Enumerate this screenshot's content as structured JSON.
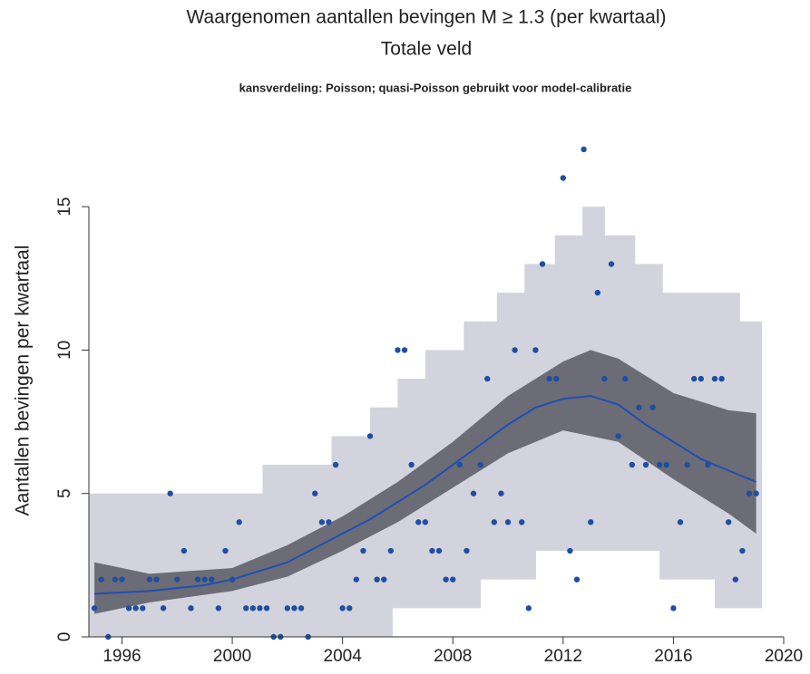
{
  "chart_data": {
    "type": "scatter",
    "title": "Waargenomen aantallen bevingen M ≥ 1.3 (per kwartaal)",
    "subtitle": "Totale veld",
    "note": "kansverdeling: Poisson; quasi-Poisson gebruikt voor model-calibratie",
    "y_label": "Aantallen bevingen per kwartaal",
    "xlim": [
      1994.8,
      2020
    ],
    "xticks": [
      1996,
      2000,
      2004,
      2008,
      2012,
      2016,
      2020
    ],
    "ylim": [
      0,
      17.5
    ],
    "yticks": [
      0,
      5,
      10,
      15
    ],
    "points": {
      "color": "#1f4fa0",
      "x": [
        1995,
        1995.25,
        1995.5,
        1995.75,
        1996,
        1996.25,
        1996.5,
        1996.75,
        1997,
        1997.25,
        1997.5,
        1997.75,
        1998,
        1998.25,
        1998.5,
        1998.75,
        1999,
        1999.25,
        1999.5,
        1999.75,
        2000,
        2000.25,
        2000.5,
        2000.75,
        2001,
        2001.25,
        2001.5,
        2001.75,
        2002,
        2002.25,
        2002.5,
        2002.75,
        2003,
        2003.25,
        2003.5,
        2003.75,
        2004,
        2004.25,
        2004.5,
        2004.75,
        2005,
        2005.25,
        2005.5,
        2005.75,
        2006,
        2006.25,
        2006.5,
        2006.75,
        2007,
        2007.25,
        2007.5,
        2007.75,
        2008,
        2008.25,
        2008.5,
        2008.75,
        2009,
        2009.25,
        2009.5,
        2009.75,
        2010,
        2010.25,
        2010.5,
        2010.75,
        2011,
        2011.25,
        2011.5,
        2011.75,
        2012,
        2012.25,
        2012.5,
        2012.75,
        2013,
        2013.25,
        2013.5,
        2013.75,
        2014,
        2014.25,
        2014.5,
        2014.75,
        2015,
        2015.25,
        2015.5,
        2015.75,
        2016,
        2016.25,
        2016.5,
        2016.75,
        2017,
        2017.25,
        2017.5,
        2017.75,
        2018,
        2018.25,
        2018.5,
        2018.75,
        2019
      ],
      "values": [
        1,
        2,
        0,
        2,
        2,
        1,
        1,
        1,
        2,
        2,
        1,
        5,
        2,
        3,
        1,
        2,
        2,
        2,
        1,
        3,
        2,
        4,
        1,
        1,
        1,
        1,
        0,
        0,
        1,
        1,
        1,
        0,
        5,
        4,
        4,
        6,
        1,
        1,
        2,
        3,
        7,
        2,
        2,
        3,
        10,
        10,
        6,
        4,
        4,
        3,
        3,
        2,
        2,
        6,
        3,
        5,
        6,
        9,
        4,
        5,
        4,
        10,
        4,
        1,
        10,
        13,
        9,
        9,
        16,
        3,
        2,
        17,
        4,
        12,
        9,
        13,
        7,
        9,
        6,
        8,
        6,
        8,
        6,
        6,
        1,
        4,
        6,
        9,
        9,
        6,
        9,
        9,
        4,
        2,
        3,
        5,
        5
      ]
    },
    "fit": {
      "color": "#1f4fb4",
      "x": [
        1995,
        1997,
        1999,
        2000,
        2001,
        2002,
        2003,
        2004,
        2005,
        2006,
        2007,
        2008,
        2009,
        2010,
        2011,
        2012,
        2013,
        2014,
        2015,
        2016,
        2017,
        2018,
        2019
      ],
      "values": [
        1.5,
        1.6,
        1.8,
        2.0,
        2.3,
        2.6,
        3.1,
        3.6,
        4.1,
        4.7,
        5.3,
        6.0,
        6.7,
        7.4,
        8.0,
        8.3,
        8.4,
        8.1,
        7.4,
        6.8,
        6.2,
        5.8,
        5.4
      ]
    },
    "confidence_band": {
      "color": "#6c6c76",
      "x": [
        1995,
        1997,
        2000,
        2002,
        2004,
        2006,
        2008,
        2010,
        2012,
        2013,
        2014,
        2016,
        2018,
        2019
      ],
      "lower": [
        0.8,
        1.2,
        1.6,
        2.1,
        3.0,
        4.0,
        5.2,
        6.4,
        7.2,
        7.0,
        6.8,
        5.5,
        4.3,
        3.6
      ],
      "upper": [
        2.6,
        2.2,
        2.4,
        3.2,
        4.2,
        5.4,
        6.8,
        8.4,
        9.6,
        10.0,
        9.7,
        8.5,
        7.9,
        7.8
      ]
    },
    "prediction_band": {
      "color": "#d3d3dd",
      "edges": [
        1994.8,
        2001.1,
        2003.6,
        2005,
        2005.8,
        2006,
        2007,
        2008.4,
        2009,
        2009.6,
        2010.6,
        2011,
        2011.7,
        2012.7,
        2013.5,
        2014.6,
        2015.5,
        2015.6,
        2016.9,
        2017.5,
        2018.4,
        2019.2
      ],
      "lower": [
        0,
        0,
        0,
        0,
        1,
        1,
        1,
        1,
        2,
        2,
        2,
        3,
        3,
        3,
        3,
        3,
        2,
        2,
        2,
        1,
        1
      ],
      "upper": [
        5,
        6,
        7,
        8,
        8,
        9,
        10,
        11,
        11,
        12,
        13,
        13,
        14,
        15,
        14,
        13,
        13,
        12,
        12,
        12,
        11
      ]
    }
  }
}
